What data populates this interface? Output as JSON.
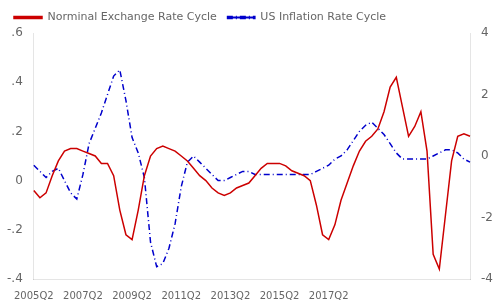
{
  "chart_data": {
    "type": "line",
    "categories": [
      "2005Q2",
      null,
      null,
      null,
      null,
      null,
      null,
      null,
      "2007Q2",
      null,
      null,
      null,
      null,
      null,
      null,
      null,
      "2009Q2",
      null,
      null,
      null,
      null,
      null,
      null,
      null,
      "2011Q2",
      null,
      null,
      null,
      null,
      null,
      null,
      null,
      "2013Q2",
      null,
      null,
      null,
      null,
      null,
      null,
      null,
      "2015Q2",
      null,
      null,
      null,
      null,
      null,
      null,
      null,
      "2017Q2",
      null,
      null,
      null,
      null,
      null,
      null,
      null,
      null,
      null,
      null,
      null,
      null,
      null,
      null,
      null,
      null,
      null,
      null,
      null,
      null,
      null,
      null,
      null
    ],
    "series": [
      {
        "name": "Norminal Exchange Rate Cycle",
        "color": "#cc0000",
        "line_style": "solid",
        "axis": "y",
        "values": [
          -0.04,
          -0.07,
          -0.05,
          0.02,
          0.08,
          0.12,
          0.13,
          0.13,
          0.12,
          0.11,
          0.1,
          0.07,
          0.07,
          0.02,
          -0.12,
          -0.22,
          -0.24,
          -0.12,
          0.02,
          0.1,
          0.13,
          0.14,
          0.13,
          0.12,
          0.1,
          0.08,
          0.05,
          0.02,
          0.0,
          -0.03,
          -0.05,
          -0.06,
          -0.05,
          -0.03,
          -0.02,
          -0.01,
          0.02,
          0.05,
          0.07,
          0.07,
          0.07,
          0.06,
          0.04,
          0.03,
          0.02,
          0.0,
          -0.1,
          -0.22,
          -0.24,
          -0.18,
          -0.08,
          -0.01,
          0.06,
          0.12,
          0.16,
          0.18,
          0.21,
          0.28,
          0.38,
          0.42,
          0.3,
          0.18,
          0.22,
          0.28,
          0.12,
          -0.3,
          -0.36,
          -0.14,
          0.08,
          0.18,
          0.19,
          0.18
        ]
      },
      {
        "name": "US Inflation Rate Cycle",
        "color": "#0000cc",
        "line_style": "dashdot",
        "axis": "y2",
        "values": [
          -0.3,
          -0.5,
          -0.7,
          -0.5,
          -0.4,
          -0.8,
          -1.2,
          -1.4,
          -0.6,
          0.4,
          0.9,
          1.4,
          2.0,
          2.6,
          2.8,
          1.8,
          0.6,
          0.1,
          -0.7,
          -2.8,
          -3.6,
          -3.5,
          -3.0,
          -2.2,
          -1.0,
          -0.2,
          0.0,
          -0.2,
          -0.4,
          -0.6,
          -0.8,
          -0.8,
          -0.7,
          -0.6,
          -0.5,
          -0.5,
          -0.6,
          -0.6,
          -0.6,
          -0.6,
          -0.6,
          -0.6,
          -0.6,
          -0.6,
          -0.6,
          -0.6,
          -0.5,
          -0.4,
          -0.3,
          -0.1,
          0.0,
          0.2,
          0.5,
          0.8,
          1.0,
          1.1,
          0.9,
          0.7,
          0.4,
          0.1,
          -0.1,
          -0.1,
          -0.1,
          -0.1,
          -0.1,
          0.0,
          0.1,
          0.2,
          0.2,
          0.1,
          -0.1,
          -0.2
        ]
      }
    ],
    "ylim": [
      -0.4,
      0.6
    ],
    "yticks": [
      {
        "value": -0.4,
        "label": "-.4"
      },
      {
        "value": -0.2,
        "label": "-.2"
      },
      0,
      {
        "value": 0.2,
        "label": ".2"
      },
      {
        "value": 0.4,
        "label": ".4"
      },
      {
        "value": 0.6,
        "label": ".6"
      }
    ],
    "y2lim": [
      -4,
      4
    ],
    "y2ticks": [
      -4,
      -2,
      0,
      2,
      4
    ],
    "grid": false,
    "legend": "upper left"
  }
}
